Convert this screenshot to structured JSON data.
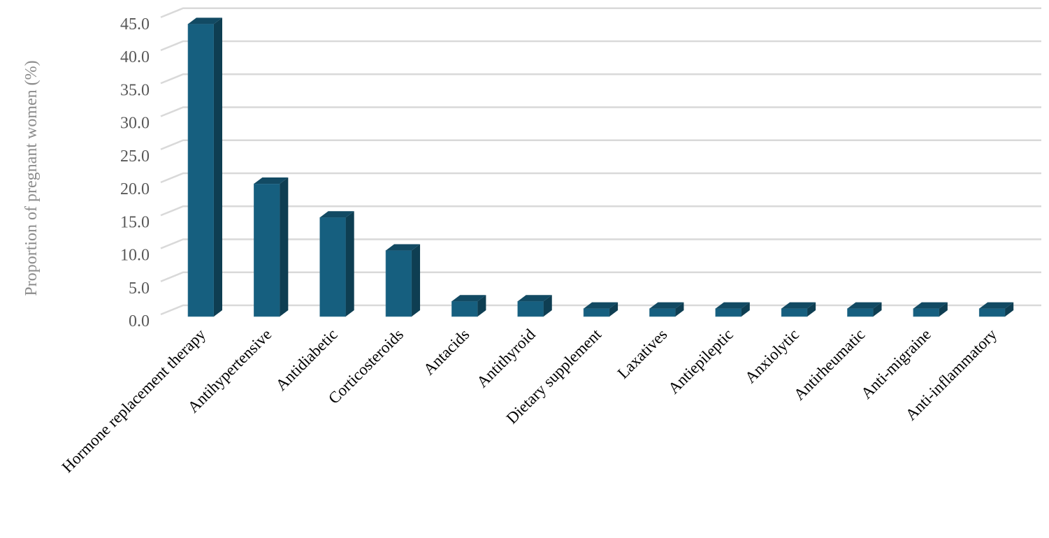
{
  "chart_data": {
    "type": "bar",
    "style": "3d-column",
    "title": "",
    "xlabel": "",
    "ylabel": "Proportion of pregnant women (%)",
    "ylim": [
      0,
      45
    ],
    "yticks": [
      "0.0",
      "5.0",
      "10.0",
      "15.0",
      "20.0",
      "25.0",
      "30.0",
      "35.0",
      "40.0",
      "45.0"
    ],
    "grid": true,
    "legend": "none",
    "colors": {
      "front": "#165f7f",
      "side": "#0e3e52",
      "top": "#124a63",
      "grid": "#d9d9d9"
    },
    "categories": [
      "Hormone replacement therapy",
      "Antihypertensive",
      "Antidiabetic",
      "Corticosteroids",
      "Antacids",
      "Antithyroid",
      "Dietary supplement",
      "Laxatives",
      "Antiepileptic",
      "Anxiolytic",
      "Antirheumatic",
      "Anti-migraine",
      "Anti-inflammatory"
    ],
    "values": [
      44.3,
      20.1,
      15.0,
      10.0,
      2.3,
      2.3,
      1.2,
      1.2,
      1.2,
      1.2,
      1.2,
      1.2,
      1.2
    ]
  }
}
